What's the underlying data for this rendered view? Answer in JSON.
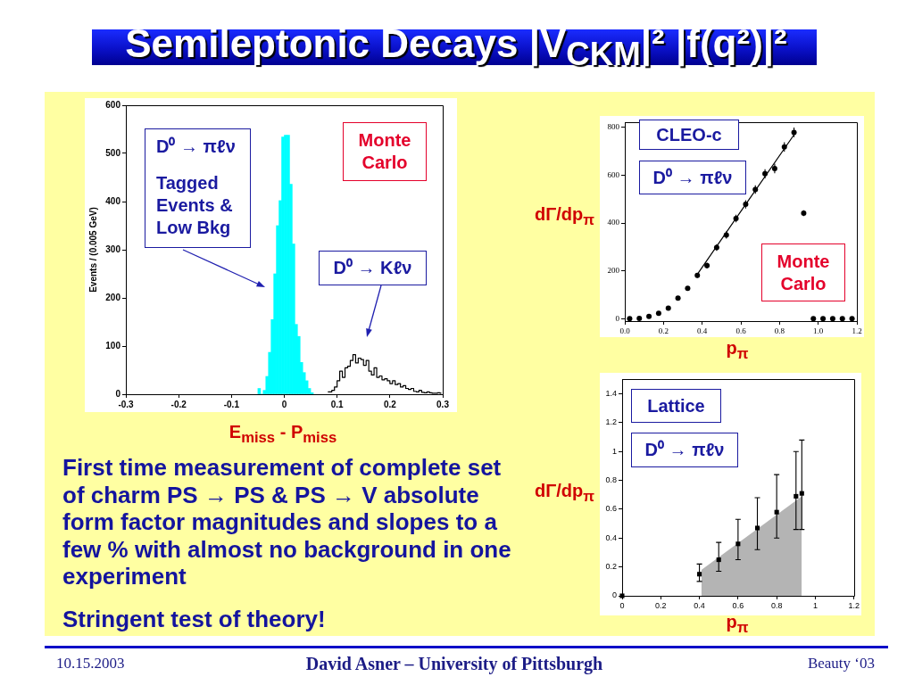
{
  "chart_data": [
    {
      "type": "histogram",
      "xlabel": "E$_{miss}$ - P$_{miss}$",
      "ylabel": "Events / (0.005 GeV)",
      "xlim": [
        -0.3,
        0.3
      ],
      "xticks": [
        -0.3,
        -0.2,
        -0.1,
        0,
        0.1,
        0.2,
        0.3
      ],
      "ylim": [
        0,
        600
      ],
      "yticks": [
        0,
        100,
        200,
        300,
        400,
        500,
        600
      ],
      "bins": [
        -0.05,
        -0.045,
        -0.04,
        -0.035,
        -0.03,
        -0.025,
        -0.02,
        -0.015,
        -0.01,
        -0.005,
        0,
        0.005,
        0.01,
        0.015,
        0.02,
        0.025,
        0.03,
        0.035,
        0.04,
        0.045,
        0.05,
        0.055
      ],
      "series": [
        {
          "color": "#00ffff",
          "values": [
            12,
            0,
            8,
            37,
            87,
            155,
            250,
            350,
            402,
            534,
            538,
            538,
            436,
            312,
            145,
            120,
            66,
            45,
            28,
            12,
            3
          ]
        },
        {
          "type": "step",
          "color": "#000000",
          "x": [
            0.0825,
            0.0875,
            0.0925,
            0.0975,
            0.1025,
            0.1075,
            0.1125,
            0.1175,
            0.1225,
            0.1275,
            0.1325,
            0.1375,
            0.1425,
            0.1475,
            0.1525,
            0.1575,
            0.1625,
            0.1675,
            0.1725,
            0.1775,
            0.1825,
            0.1875,
            0.1925,
            0.1975,
            0.2025,
            0.2075,
            0.2125,
            0.2175,
            0.2225,
            0.2275,
            0.2325,
            0.2375,
            0.2425,
            0.2475,
            0.2525,
            0.2575,
            0.2625,
            0.2675,
            0.2725,
            0.2775,
            0.2825,
            0.2875,
            0.2925,
            0.2975
          ],
          "values": [
            5,
            5,
            8,
            15,
            28,
            48,
            35,
            55,
            58,
            70,
            82,
            65,
            75,
            72,
            60,
            70,
            48,
            40,
            55,
            35,
            38,
            30,
            32,
            28,
            22,
            28,
            20,
            22,
            15,
            18,
            12,
            10,
            12,
            6,
            5,
            8,
            4,
            3,
            5,
            3,
            2,
            2,
            3,
            2
          ]
        }
      ],
      "annotations": [
        "D⁰ → πℓν",
        "Tagged Events & Low Bkg",
        "Monte Carlo",
        "D⁰ → Kℓν"
      ]
    },
    {
      "type": "scatter",
      "xlabel": "p$_{π}$",
      "ylabel": "dΓ/dp$_{π}$",
      "xlim": [
        0,
        1.2
      ],
      "xticks": [
        {
          "value": 0,
          "label": "0.0"
        },
        0.2,
        0.4,
        0.6,
        0.8,
        {
          "value": 1,
          "label": "1.0"
        },
        1.2
      ],
      "ylim": [
        -10,
        820
      ],
      "yticks": [
        0,
        200,
        400,
        600,
        800
      ],
      "series": [
        {
          "color": "#000000",
          "marker": "circle",
          "x": [
            0.025,
            0.075,
            0.125,
            0.175,
            0.225,
            0.275,
            0.325,
            0.375,
            0.425,
            0.475,
            0.525,
            0.575,
            0.625,
            0.675,
            0.725,
            0.775,
            0.825,
            0.875,
            0.925,
            0.975,
            1.025,
            1.075,
            1.125,
            1.175
          ],
          "values": [
            0,
            1,
            10,
            23,
            44,
            86,
            127,
            181,
            222,
            298,
            350,
            419,
            478,
            540,
            606,
            628,
            718,
            779,
            441,
            0,
            0,
            0,
            0,
            0
          ],
          "errors": [
            null,
            null,
            null,
            null,
            null,
            null,
            null,
            10,
            12,
            14,
            15,
            16,
            17,
            18,
            19,
            20,
            20,
            20,
            12,
            null,
            null,
            null,
            null,
            null
          ]
        },
        {
          "type": "line",
          "color": "#000000",
          "x": [
            0.37,
            0.625,
            0.88
          ],
          "values": [
            180,
            478,
            775
          ]
        }
      ],
      "annotations": [
        "CLEO-c",
        "D⁰ → πℓν",
        "Monte Carlo"
      ]
    },
    {
      "type": "scatter",
      "xlabel": "p$_{π}$",
      "ylabel": "dΓ/dp$_{π}$",
      "xlim": [
        0,
        1.2
      ],
      "xticks": [
        0,
        0.2,
        0.4,
        0.6,
        0.8,
        1,
        1.2
      ],
      "ylim": [
        0,
        1.5
      ],
      "yticks": [
        0,
        0.2,
        0.4,
        0.6,
        0.8,
        1,
        1.2,
        1.4
      ],
      "series": [
        {
          "type": "area",
          "color": "#b4b4b4",
          "x": [
            0.41,
            0.93
          ],
          "values": [
            0.18,
            0.69
          ]
        },
        {
          "color": "#000000",
          "marker": "square",
          "x": [
            0,
            0.4,
            0.5,
            0.6,
            0.7,
            0.8,
            0.9,
            0.93
          ],
          "values": [
            0,
            0.15,
            0.25,
            0.36,
            0.47,
            0.58,
            0.69,
            0.71
          ],
          "errors": [
            null,
            [
              0.1,
              0.22
            ],
            [
              0.17,
              0.37
            ],
            [
              0.25,
              0.53
            ],
            [
              0.32,
              0.68
            ],
            [
              0.4,
              0.84
            ],
            [
              0.46,
              1
            ],
            [
              0.46,
              1.08
            ]
          ]
        }
      ],
      "annotations": [
        "Lattice",
        "D⁰ → πℓν"
      ]
    },
    {
      "type": "other",
      "title": "Semileptonic Decays |V$_{CKM}$|² |f(q²)|²",
      "annotations": [
        "First time measurement of complete set of charm PS → PS & PS → V absolute form factor magnitudes and slopes to a few % with almost no background in one experiment",
        "Stringent test of theory!",
        "10.15.2003",
        "David Asner – University of Pittsburgh",
        "Beauty ‘03"
      ]
    }
  ]
}
